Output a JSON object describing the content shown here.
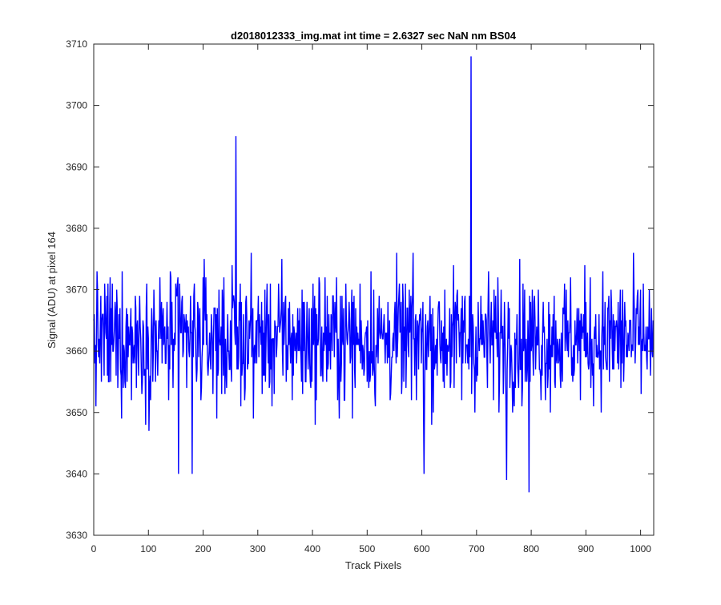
{
  "chart_data": {
    "type": "line",
    "title": "d2018012333_img.mat int time = 2.6327 sec  NaN nm BS04",
    "xlabel": "Track Pixels",
    "ylabel": "Signal (ADU) at pixel 164",
    "xlim": [
      0,
      1024
    ],
    "ylim": [
      3630,
      3710
    ],
    "xticks": [
      0,
      100,
      200,
      300,
      400,
      500,
      600,
      700,
      800,
      900,
      1000
    ],
    "yticks": [
      3630,
      3640,
      3650,
      3660,
      3670,
      3680,
      3690,
      3700,
      3710
    ],
    "grid": false,
    "series": [
      {
        "color": "#0000ff",
        "peaks": [
          {
            "x": 260,
            "y": 3695
          },
          {
            "x": 690,
            "y": 3708
          }
        ],
        "dips": [
          {
            "x": 155,
            "y": 3640
          },
          {
            "x": 180,
            "y": 3640
          },
          {
            "x": 604,
            "y": 3640
          },
          {
            "x": 755,
            "y": 3639
          },
          {
            "x": 796,
            "y": 3637
          }
        ],
        "baseline_mean": 3662,
        "noise_low": 3645,
        "noise_high": 3685,
        "n_points": 1024
      }
    ]
  }
}
